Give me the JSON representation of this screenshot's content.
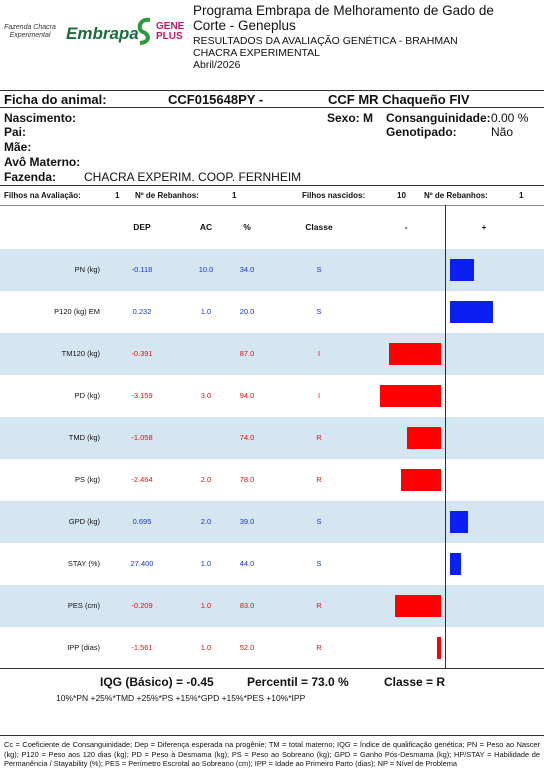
{
  "header": {
    "logo": {
      "farm": "Fazenda Chacra Experimental",
      "embrapa": "Embrapa",
      "geneplus": "GENE PLUS"
    },
    "title_lines": [
      "Programa Embrapa de Melhoramento de Gado de",
      "Corte - Geneplus",
      "RESULTADOS DA AVALIAÇÃO GENÉTICA - BRAHMAN",
      "CHACRA EXPERIMENTAL",
      "Abril/2026"
    ]
  },
  "animal": {
    "label": "Ficha do animal:",
    "id": "CCF015648PY -",
    "name": "CCF MR Chaqueño FIV",
    "nascimento": "Nascimento:",
    "pai": "Pai:",
    "mae": "Mãe:",
    "avo": "Avô Materno:",
    "fazenda_label": "Fazenda:",
    "fazenda": "CHACRA EXPERIM. COOP. FERNHEIM",
    "sexo": "Sexo: M",
    "consang_label": "Consanguinidade:",
    "consang": "0.00 %",
    "genot_label": "Genotipado:",
    "genot": "Não"
  },
  "counts": {
    "filhos_aval_label": "Filhos na Avaliação:",
    "filhos_aval": "1",
    "reb1_label": "Nº de Rebanhos:",
    "reb1": "1",
    "filhos_nasc_label": "Filhos nascidos:",
    "filhos_nasc": "10",
    "reb2_label": "Nº de Rebanhos:",
    "reb2": "1"
  },
  "table": {
    "columns": [
      "DEP",
      "AC",
      "%",
      "Classe",
      "-",
      "+"
    ],
    "rows": [
      {
        "trait": "PN (kg)",
        "dep": "-0.118",
        "ac": "10.0",
        "pct": "34.0",
        "classe": "S",
        "color": "#1a35c8"
      },
      {
        "trait": "P120 (kg) EM",
        "dep": "0.232",
        "ac": "1.0",
        "pct": "20.0",
        "classe": "S",
        "color": "#1a35c8"
      },
      {
        "trait": "TM120 (kg)",
        "dep": "-0.391",
        "pct": "87.0",
        "classe": "I",
        "color": "#e01010"
      },
      {
        "trait": "PD (kg)",
        "dep": "-3.159",
        "ac": "3.0",
        "pct": "94.0",
        "classe": "I",
        "color": "#e01010"
      },
      {
        "trait": "TMD (kg)",
        "dep": "-1.058",
        "pct": "74.0",
        "classe": "R",
        "color": "#e01010"
      },
      {
        "trait": "PS (kg)",
        "dep": "-2.464",
        "ac": "2.0",
        "pct": "78.0",
        "classe": "R",
        "color": "#e01010"
      },
      {
        "trait": "GPD (kg)",
        "dep": "0.695",
        "ac": "2.0",
        "pct": "39.0",
        "classe": "S",
        "color": "#1a35c8"
      },
      {
        "trait": "STAY (%)",
        "dep": "27.400",
        "ac": "1.0",
        "pct": "44.0",
        "classe": "S",
        "color": "#1a35c8"
      },
      {
        "trait": "PES (cm)",
        "dep": "-0.209",
        "ac": "1.0",
        "pct": "83.0",
        "classe": "R",
        "color": "#e01010"
      },
      {
        "trait": "IPP (dias)",
        "dep": "-1.561",
        "ac": "1.0",
        "pct": "52.0",
        "classe": "R",
        "color": "#e01010"
      }
    ]
  },
  "summary": {
    "iqg": "IQG (Básico) = -0.45",
    "percentil": "Percentil = 73.0 %",
    "classe": "Classe = R",
    "formula": "10%*PN +25%*TMD +25%*PS +15%*GPD +15%*PES +10%*IPP"
  },
  "legend": "Cc = Coeficiente de Consanguinidade;  Dep = Diferença esperada na progênie; TM = total materno; IQG = Índice de qualificação genética; PN = Peso ao Nascer (kg); P120 = Peso aos 120 dias (kg); PD = Peso à Desmama  (kg); PS = Peso ao Sobreano (kg); GPD = Ganho Pós-Desmama (kg); HP/STAY = Habilidade de Permanência  / Stayability (%); PES = Perímetro Escrotal ao Sobreano (cm); IPP = Idade ao Primeiro Parto (dias); NP = Nível de Problema"
}
